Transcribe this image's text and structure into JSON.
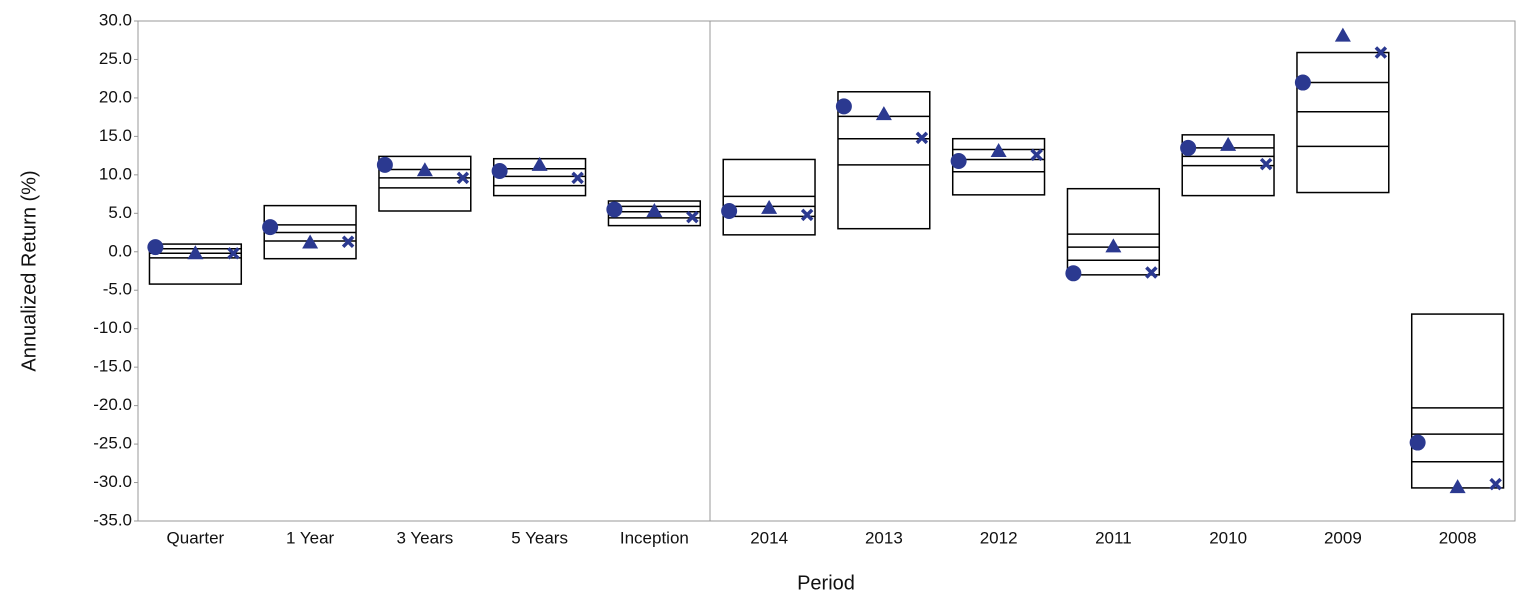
{
  "chart_data": {
    "type": "range-box",
    "x_label": "Period",
    "y_label": "Annualized Return (%)",
    "categories": [
      "Quarter",
      "1 Year",
      "3 Years",
      "5 Years",
      "Inception",
      "2014",
      "2013",
      "2012",
      "2011",
      "2010",
      "2009",
      "2008"
    ],
    "ranges": [
      [
        1.0,
        0.4,
        -0.2,
        -0.8,
        -4.2
      ],
      [
        6.0,
        3.5,
        2.5,
        1.4,
        -0.9
      ],
      [
        12.4,
        10.7,
        9.6,
        8.3,
        5.3
      ],
      [
        12.1,
        10.8,
        9.8,
        8.6,
        7.3
      ],
      [
        6.6,
        5.9,
        5.2,
        4.4,
        3.4
      ],
      [
        12.0,
        7.2,
        5.9,
        4.6,
        2.2
      ],
      [
        20.8,
        17.6,
        14.7,
        11.3,
        3.0
      ],
      [
        14.7,
        13.3,
        12.0,
        10.4,
        7.4
      ],
      [
        8.2,
        2.3,
        0.6,
        -1.1,
        -3.0
      ],
      [
        15.2,
        13.5,
        12.4,
        11.2,
        7.3
      ],
      [
        25.9,
        22.0,
        18.2,
        13.7,
        7.7
      ],
      [
        -8.1,
        -20.3,
        -23.7,
        -27.3,
        -30.7
      ]
    ],
    "box_color": "#000000",
    "series": [
      {
        "marker": "circle",
        "color": "#2b3990",
        "values": [
          0.6,
          3.2,
          11.3,
          10.5,
          5.5,
          5.3,
          18.9,
          11.8,
          -2.8,
          13.5,
          22.0,
          -24.8
        ]
      },
      {
        "marker": "triangle",
        "color": "#2b3990",
        "values": [
          -0.2,
          1.2,
          10.6,
          11.3,
          5.3,
          5.7,
          17.9,
          13.1,
          0.7,
          13.9,
          28.1,
          -30.6
        ]
      },
      {
        "marker": "x",
        "color": "#2b3990",
        "values": [
          -0.2,
          1.3,
          9.6,
          9.6,
          4.5,
          4.8,
          14.8,
          12.6,
          -2.7,
          11.4,
          25.9,
          -30.2
        ]
      }
    ],
    "ylim": [
      -35,
      30
    ],
    "yticks": [
      {
        "value": -35,
        "label": "-35.0"
      },
      {
        "value": -30,
        "label": "-30.0"
      },
      {
        "value": -25,
        "label": "-25.0"
      },
      {
        "value": -20,
        "label": "-20.0"
      },
      {
        "value": -15,
        "label": "-15.0"
      },
      {
        "value": -10,
        "label": "-10.0"
      },
      {
        "value": -5,
        "label": "-5.0"
      },
      {
        "value": 0,
        "label": "0.0"
      },
      {
        "value": 5,
        "label": "5.0"
      },
      {
        "value": 10,
        "label": "10.0"
      },
      {
        "value": 15,
        "label": "15.0"
      },
      {
        "value": 20,
        "label": "20.0"
      },
      {
        "value": 25,
        "label": "25.0"
      },
      {
        "value": 30,
        "label": "30.0"
      }
    ]
  }
}
